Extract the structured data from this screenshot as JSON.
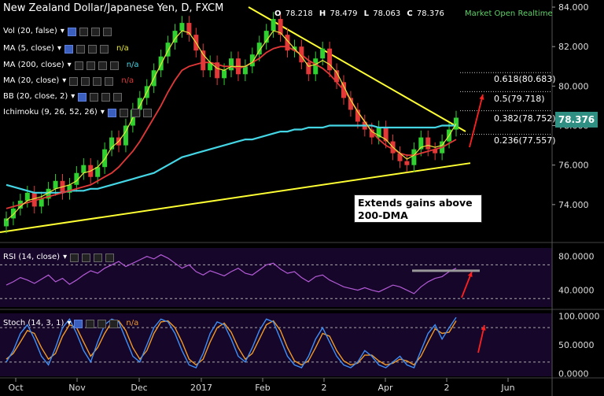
{
  "header": {
    "title": "New Zealand Dollar/Japanese Yen, D, FXCM",
    "ohlc": [
      {
        "k": "O",
        "v": "78.218"
      },
      {
        "k": "H",
        "v": "78.479"
      },
      {
        "k": "L",
        "v": "78.063"
      },
      {
        "k": "C",
        "v": "78.376"
      }
    ],
    "market_status": "Market Open Realtime"
  },
  "indicators": [
    {
      "label": "Vol (20, false)",
      "value": "",
      "color": "#ffffff"
    },
    {
      "label": "MA (5, close)",
      "value": "n/a",
      "color": "#e7e73a"
    },
    {
      "label": "MA (200, close)",
      "value": "n/a",
      "color": "#45d6e6"
    },
    {
      "label": "MA (20, close)",
      "value": "n/a",
      "color": "#e23838"
    },
    {
      "label": "BB (20, close, 2)",
      "value": "",
      "color": "#ffffff"
    },
    {
      "label": "Ichimoku (9, 26, 52, 26)",
      "value": "",
      "color": "#ffffff"
    }
  ],
  "annotation": "Extends gains above 200-DMA",
  "fib_levels": [
    {
      "label": "0.618(80.683)",
      "value": 80.683
    },
    {
      "label": "0.5(79.718)",
      "value": 79.718
    },
    {
      "label": "0.382(78.752)",
      "value": 78.752
    },
    {
      "label": "0.236(77.557)",
      "value": 77.557
    }
  ],
  "price_badge": "78.376",
  "rsi_label": "RSI (14, close)",
  "stoch_label": "Stoch (14, 3, 1)",
  "stoch_value": "n/a",
  "colors": {
    "background": "#000000",
    "up": "#2fd02f",
    "down": "#e23838",
    "ma5": "#e7e73a",
    "ma200": "#45d6e6",
    "ma20": "#e23838",
    "trend": "#ffff33",
    "rsi": "#b35bd6",
    "stoch_k": "#3f8ef5",
    "stoch_d": "#f09a28",
    "annotation_arrow": "#ff2020"
  },
  "chart_data": [
    {
      "type": "candlestick",
      "title": "New Zealand Dollar/Japanese Yen, D, FXCM",
      "x_ticks": [
        "Oct",
        "Nov",
        "Dec",
        "2017",
        "Feb",
        "2",
        "Apr",
        "2",
        "Jun"
      ],
      "y_ticks": [
        "74.000",
        "76.000",
        "78.000",
        "80.000",
        "82.000",
        "84.000"
      ],
      "ylim": [
        72.4,
        84.2
      ],
      "close": [
        73.3,
        73.8,
        74.2,
        74.6,
        73.9,
        74.3,
        74.8,
        75.2,
        74.6,
        75.0,
        75.6,
        76.0,
        75.4,
        75.9,
        76.8,
        77.4,
        77.0,
        78.0,
        78.8,
        79.4,
        80.0,
        80.8,
        81.5,
        82.2,
        82.8,
        83.2,
        82.6,
        81.8,
        80.8,
        81.2,
        80.4,
        80.8,
        81.4,
        80.6,
        81.0,
        81.6,
        82.2,
        82.8,
        83.4,
        82.6,
        81.8,
        82.0,
        81.2,
        80.6,
        81.4,
        81.9,
        80.8,
        80.2,
        79.4,
        78.8,
        78.2,
        77.8,
        77.4,
        77.9,
        77.2,
        76.6,
        76.2,
        76.0,
        76.8,
        77.4,
        76.8,
        76.6,
        77.2,
        77.8,
        78.4
      ],
      "ma5": [
        73.2,
        73.5,
        73.9,
        74.2,
        74.3,
        74.4,
        74.6,
        74.8,
        74.9,
        75.0,
        75.2,
        75.6,
        75.7,
        75.9,
        76.3,
        76.9,
        77.2,
        77.7,
        78.4,
        79.0,
        79.7,
        80.4,
        81.1,
        81.8,
        82.4,
        82.8,
        82.7,
        82.2,
        81.6,
        81.2,
        80.9,
        80.8,
        81.0,
        81.0,
        81.0,
        81.2,
        81.8,
        82.3,
        82.8,
        82.7,
        82.3,
        81.9,
        81.5,
        81.0,
        81.1,
        81.3,
        81.1,
        80.7,
        80.0,
        79.3,
        78.7,
        78.2,
        77.7,
        77.5,
        77.3,
        76.9,
        76.6,
        76.3,
        76.5,
        76.9,
        77.0,
        76.9,
        77.0,
        77.5,
        78.1
      ],
      "ma20": [
        73.8,
        73.9,
        74.0,
        74.1,
        74.2,
        74.3,
        74.4,
        74.5,
        74.6,
        74.7,
        74.8,
        74.9,
        75.0,
        75.2,
        75.4,
        75.6,
        75.9,
        76.3,
        76.7,
        77.2,
        77.8,
        78.4,
        79.0,
        79.7,
        80.3,
        80.8,
        81.0,
        81.1,
        81.2,
        81.2,
        81.1,
        81.0,
        81.0,
        80.9,
        81.0,
        81.2,
        81.4,
        81.7,
        81.9,
        82.0,
        82.0,
        81.8,
        81.6,
        81.3,
        81.1,
        80.9,
        80.6,
        80.2,
        79.8,
        79.3,
        78.7,
        78.2,
        77.7,
        77.3,
        77.0,
        76.8,
        76.6,
        76.5,
        76.5,
        76.6,
        76.7,
        76.8,
        76.9,
        77.1,
        77.3
      ],
      "ma200": [
        75.0,
        74.9,
        74.8,
        74.7,
        74.6,
        74.6,
        74.6,
        74.6,
        74.6,
        74.7,
        74.7,
        74.7,
        74.8,
        74.8,
        74.9,
        75.0,
        75.1,
        75.2,
        75.3,
        75.4,
        75.5,
        75.6,
        75.8,
        76.0,
        76.2,
        76.4,
        76.5,
        76.6,
        76.7,
        76.8,
        76.9,
        77.0,
        77.1,
        77.2,
        77.3,
        77.3,
        77.4,
        77.5,
        77.6,
        77.7,
        77.7,
        77.8,
        77.8,
        77.9,
        77.9,
        77.9,
        78.0,
        78.0,
        78.0,
        78.0,
        78.0,
        78.0,
        78.0,
        77.9,
        77.9,
        77.9,
        77.9,
        77.9,
        77.9,
        77.9,
        77.9,
        77.9,
        78.0,
        78.0,
        78.0
      ]
    },
    {
      "type": "line",
      "title": "RSI (14, close)",
      "y_ticks": [
        "40.0000",
        "80.0000"
      ],
      "ylim": [
        20,
        90
      ],
      "values": [
        46,
        50,
        55,
        52,
        48,
        53,
        58,
        50,
        54,
        47,
        52,
        58,
        63,
        60,
        66,
        70,
        74,
        68,
        72,
        76,
        80,
        77,
        82,
        78,
        72,
        66,
        70,
        62,
        58,
        63,
        60,
        57,
        62,
        66,
        60,
        58,
        64,
        70,
        72,
        65,
        60,
        62,
        55,
        50,
        56,
        58,
        52,
        48,
        44,
        42,
        40,
        43,
        40,
        38,
        42,
        46,
        44,
        40,
        36,
        44,
        50,
        54,
        56,
        62,
        66
      ]
    },
    {
      "type": "line",
      "title": "Stoch (14, 3, 1)",
      "y_ticks": [
        "0.0000",
        "50.0000",
        "100.0000"
      ],
      "ylim": [
        -5,
        105
      ],
      "k": [
        20,
        40,
        70,
        85,
        60,
        30,
        15,
        45,
        80,
        95,
        70,
        40,
        20,
        55,
        85,
        95,
        90,
        60,
        30,
        20,
        50,
        80,
        95,
        90,
        70,
        40,
        15,
        10,
        35,
        70,
        90,
        85,
        60,
        30,
        20,
        45,
        75,
        95,
        90,
        60,
        30,
        15,
        10,
        30,
        60,
        80,
        55,
        30,
        15,
        10,
        20,
        40,
        30,
        15,
        10,
        20,
        30,
        15,
        10,
        40,
        70,
        85,
        60,
        80,
        98
      ],
      "d": [
        25,
        35,
        55,
        75,
        70,
        45,
        25,
        35,
        65,
        85,
        80,
        55,
        30,
        45,
        70,
        90,
        92,
        75,
        45,
        25,
        40,
        70,
        90,
        92,
        80,
        55,
        25,
        15,
        25,
        55,
        80,
        88,
        72,
        45,
        25,
        35,
        60,
        85,
        92,
        75,
        45,
        22,
        15,
        22,
        45,
        70,
        65,
        40,
        22,
        15,
        18,
        32,
        32,
        22,
        15,
        18,
        25,
        22,
        15,
        30,
        55,
        78,
        70,
        72,
        92
      ]
    }
  ]
}
